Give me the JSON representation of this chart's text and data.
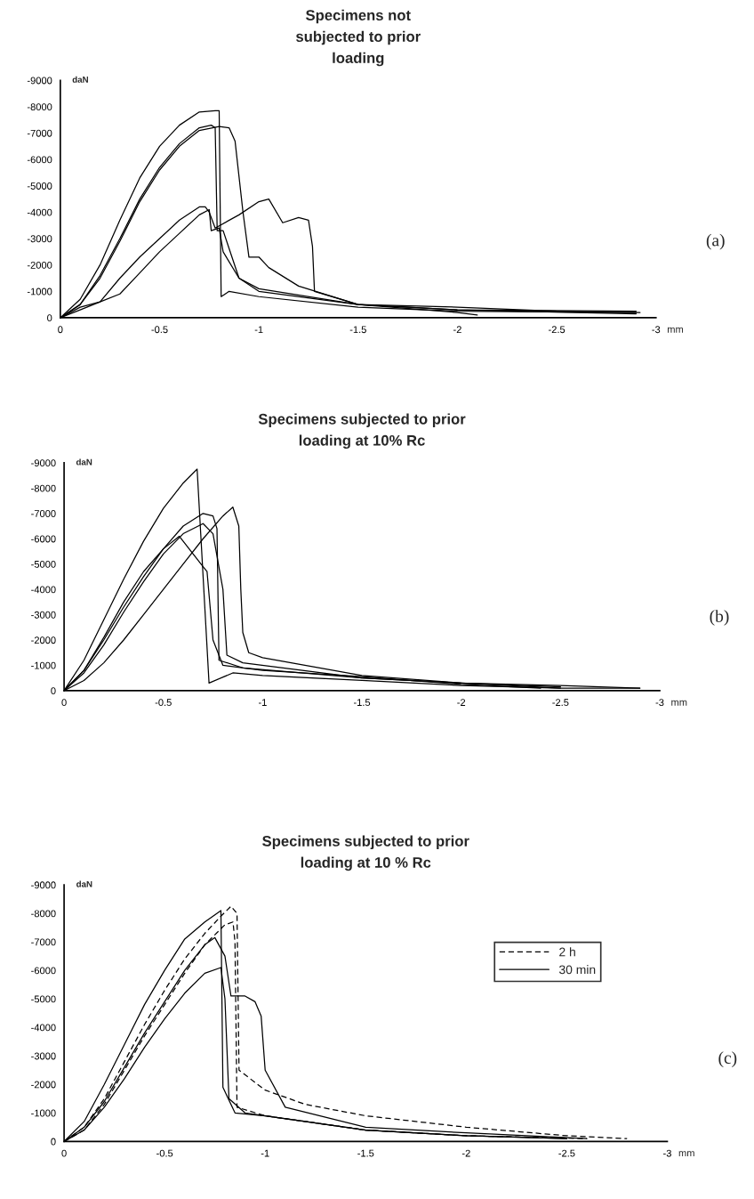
{
  "chart_data": [
    {
      "type": "line",
      "title": "Specimens not\nsubjected to prior\nloading",
      "xlabel": "mm",
      "ylabel": "daN",
      "annotations": [
        "(a)"
      ],
      "xlim": [
        0,
        -3
      ],
      "ylim": [
        0,
        -9000
      ],
      "xticks": [
        0,
        -0.5,
        -1,
        -1.5,
        -2,
        -2.5,
        -3
      ],
      "yticks": [
        0,
        -1000,
        -2000,
        -3000,
        -4000,
        -5000,
        -6000,
        -7000,
        -8000,
        -9000
      ],
      "grid": false,
      "legend": false,
      "marker": "none",
      "series": [
        {
          "color": "#000000",
          "x": [
            0,
            -0.1,
            -0.2,
            -0.3,
            -0.4,
            -0.5,
            -0.6,
            -0.7,
            -0.78,
            -0.8,
            -0.81,
            -0.85,
            -1,
            -1.5,
            -2,
            -2.9
          ],
          "values": [
            0,
            -700,
            -2000,
            -3700,
            -5300,
            -6500,
            -7300,
            -7800,
            -7850,
            -7850,
            -800,
            -1000,
            -800,
            -400,
            -250,
            -200
          ]
        },
        {
          "color": "#000000",
          "x": [
            0,
            -0.1,
            -0.2,
            -0.3,
            -0.4,
            -0.5,
            -0.6,
            -0.7,
            -0.76,
            -0.78,
            -0.79,
            -0.82,
            -0.9,
            -1.0,
            -1.5,
            -2,
            -2.1
          ],
          "values": [
            0,
            -500,
            -1600,
            -3000,
            -4500,
            -5700,
            -6600,
            -7200,
            -7300,
            -7200,
            -3300,
            -3300,
            -1500,
            -1100,
            -500,
            -200,
            -100
          ]
        },
        {
          "color": "#000000",
          "x": [
            0,
            -0.1,
            -0.2,
            -0.3,
            -0.4,
            -0.5,
            -0.6,
            -0.7,
            -0.8,
            -0.85,
            -0.88,
            -0.92,
            -0.95,
            -1.0,
            -1.05,
            -1.2,
            -1.5,
            -2,
            -2.9
          ],
          "values": [
            0,
            -500,
            -1500,
            -2900,
            -4400,
            -5600,
            -6500,
            -7100,
            -7250,
            -7200,
            -6700,
            -4000,
            -2300,
            -2300,
            -1900,
            -1200,
            -500,
            -300,
            -250
          ]
        },
        {
          "color": "#000000",
          "x": [
            0,
            -0.1,
            -0.2,
            -0.3,
            -0.4,
            -0.5,
            -0.6,
            -0.7,
            -0.73,
            -0.75,
            -0.78,
            -0.9,
            -1.0,
            -1.05,
            -1.12,
            -1.2,
            -1.25,
            -1.27,
            -1.28,
            -1.5,
            -2,
            -2.5,
            -2.92
          ],
          "values": [
            0,
            -300,
            -600,
            -1500,
            -2300,
            -3000,
            -3700,
            -4200,
            -4200,
            -4000,
            -3400,
            -3900,
            -4400,
            -4500,
            -3600,
            -3800,
            -3700,
            -2700,
            -1000,
            -500,
            -400,
            -250,
            -200
          ]
        },
        {
          "color": "#000000",
          "x": [
            0,
            -0.1,
            -0.2,
            -0.3,
            -0.4,
            -0.5,
            -0.6,
            -0.7,
            -0.75,
            -0.76,
            -0.8,
            -0.82,
            -0.9,
            -1.0,
            -1.5,
            -2.0,
            -2.9
          ],
          "values": [
            0,
            -400,
            -600,
            -900,
            -1700,
            -2500,
            -3200,
            -3900,
            -4100,
            -3300,
            -3400,
            -2500,
            -1500,
            -1000,
            -500,
            -300,
            -150
          ]
        }
      ]
    },
    {
      "type": "line",
      "title": "Specimens subjected to prior\nloading at 10% Rc",
      "xlabel": "mm",
      "ylabel": "daN",
      "annotations": [
        "(b)"
      ],
      "xlim": [
        0,
        -3
      ],
      "ylim": [
        0,
        -9000
      ],
      "xticks": [
        0,
        -0.5,
        -1,
        -1.5,
        -2,
        -2.5,
        -3
      ],
      "yticks": [
        0,
        -1000,
        -2000,
        -3000,
        -4000,
        -5000,
        -6000,
        -7000,
        -8000,
        -9000
      ],
      "grid": false,
      "legend": false,
      "marker": "none",
      "series": [
        {
          "color": "#000000",
          "x": [
            0,
            -0.1,
            -0.2,
            -0.3,
            -0.4,
            -0.5,
            -0.6,
            -0.67,
            -0.73,
            -0.85,
            -1,
            -1.5,
            -2,
            -2.5,
            -2.9
          ],
          "values": [
            0,
            -1200,
            -2800,
            -4400,
            -5900,
            -7200,
            -8200,
            -8750,
            -300,
            -700,
            -600,
            -400,
            -200,
            -100,
            -100
          ]
        },
        {
          "color": "#000000",
          "x": [
            0,
            -0.1,
            -0.2,
            -0.3,
            -0.4,
            -0.5,
            -0.6,
            -0.7,
            -0.75,
            -0.77,
            -0.78,
            -0.9,
            -1.5,
            -2,
            -2.5
          ],
          "values": [
            0,
            -800,
            -2000,
            -3300,
            -4500,
            -5600,
            -6500,
            -7000,
            -6900,
            -6400,
            -1200,
            -900,
            -500,
            -300,
            -100
          ]
        },
        {
          "color": "#000000",
          "x": [
            0,
            -0.1,
            -0.2,
            -0.3,
            -0.4,
            -0.5,
            -0.6,
            -0.7,
            -0.8,
            -0.85,
            -0.88,
            -0.89,
            -0.9,
            -0.93,
            -1,
            -1.5,
            -2,
            -2.5,
            -2.9
          ],
          "values": [
            0,
            -400,
            -1100,
            -2000,
            -3000,
            -4000,
            -5000,
            -6000,
            -6900,
            -7250,
            -6500,
            -4000,
            -2300,
            -1500,
            -1300,
            -600,
            -300,
            -200,
            -100
          ]
        },
        {
          "color": "#000000",
          "x": [
            0,
            -0.1,
            -0.2,
            -0.3,
            -0.4,
            -0.5,
            -0.6,
            -0.7,
            -0.75,
            -0.8,
            -0.82,
            -0.9,
            -1.5,
            -2,
            -2.5
          ],
          "values": [
            0,
            -700,
            -1800,
            -3100,
            -4300,
            -5400,
            -6200,
            -6600,
            -6200,
            -4000,
            -1400,
            -1100,
            -500,
            -300,
            -150
          ]
        },
        {
          "color": "#000000",
          "x": [
            0,
            -0.1,
            -0.2,
            -0.3,
            -0.4,
            -0.5,
            -0.58,
            -0.65,
            -0.7,
            -0.72,
            -0.75,
            -0.8,
            -1,
            -1.5,
            -2,
            -2.4
          ],
          "values": [
            0,
            -800,
            -2100,
            -3500,
            -4700,
            -5600,
            -6100,
            -5400,
            -4900,
            -4700,
            -2000,
            -1000,
            -800,
            -550,
            -250,
            -100
          ]
        }
      ]
    },
    {
      "type": "line",
      "title": "Specimens subjected to prior\nloading at 10 % Rc",
      "xlabel": "mm",
      "ylabel": "daN",
      "annotations": [
        "(c)"
      ],
      "xlim": [
        0,
        -3
      ],
      "ylim": [
        0,
        -9000
      ],
      "xticks": [
        0,
        -0.5,
        -1,
        -1.5,
        -2,
        -2.5,
        -3
      ],
      "yticks": [
        0,
        -1000,
        -2000,
        -3000,
        -4000,
        -5000,
        -6000,
        -7000,
        -8000,
        -9000
      ],
      "grid": false,
      "legend": "right",
      "marker": "none",
      "series": [
        {
          "name": "2 h",
          "color": "#000000",
          "line_style": "dashed",
          "x": [
            0,
            -0.1,
            -0.2,
            -0.3,
            -0.4,
            -0.5,
            -0.6,
            -0.7,
            -0.78,
            -0.83,
            -0.86,
            -0.87,
            -1.0,
            -1.2,
            -1.5,
            -2,
            -2.5,
            -2.8
          ],
          "values": [
            0,
            -500,
            -1500,
            -2800,
            -4100,
            -5300,
            -6400,
            -7300,
            -7900,
            -8250,
            -8000,
            -2500,
            -1800,
            -1300,
            -900,
            -500,
            -200,
            -100
          ]
        },
        {
          "color": "#000000",
          "line_style": "dashed",
          "x": [
            0,
            -0.1,
            -0.2,
            -0.3,
            -0.4,
            -0.5,
            -0.6,
            -0.7,
            -0.8,
            -0.84,
            -0.85,
            -0.86,
            -1,
            -1.5,
            -2,
            -2.6
          ],
          "values": [
            0,
            -400,
            -1300,
            -2500,
            -3700,
            -4800,
            -5900,
            -6900,
            -7600,
            -7700,
            -7000,
            -1200,
            -900,
            -400,
            -200,
            -100
          ]
        },
        {
          "name": "30 min",
          "color": "#000000",
          "line_style": "solid",
          "x": [
            0,
            -0.1,
            -0.2,
            -0.3,
            -0.4,
            -0.5,
            -0.6,
            -0.7,
            -0.78,
            -0.79,
            -0.85,
            -1,
            -1.5,
            -2,
            -2.5
          ],
          "values": [
            0,
            -700,
            -2000,
            -3400,
            -4800,
            -6000,
            -7100,
            -7700,
            -8100,
            -1900,
            -1000,
            -900,
            -400,
            -200,
            -100
          ]
        },
        {
          "color": "#000000",
          "line_style": "solid",
          "x": [
            0,
            -0.1,
            -0.2,
            -0.3,
            -0.4,
            -0.5,
            -0.6,
            -0.7,
            -0.75,
            -0.8,
            -0.83,
            -0.9,
            -0.95,
            -0.98,
            -1.0,
            -1.1,
            -1.5,
            -2,
            -2.6
          ],
          "values": [
            0,
            -500,
            -1400,
            -2600,
            -3800,
            -4900,
            -6000,
            -6900,
            -7150,
            -6500,
            -5100,
            -5100,
            -4900,
            -4400,
            -2500,
            -1200,
            -500,
            -300,
            -100
          ]
        },
        {
          "color": "#000000",
          "line_style": "solid",
          "x": [
            0,
            -0.1,
            -0.2,
            -0.3,
            -0.4,
            -0.5,
            -0.6,
            -0.7,
            -0.78,
            -0.8,
            -0.82,
            -0.9,
            -1.2,
            -1.5,
            -2,
            -2.5
          ],
          "values": [
            0,
            -400,
            -1200,
            -2200,
            -3300,
            -4300,
            -5200,
            -5900,
            -6100,
            -5000,
            -1500,
            -1000,
            -700,
            -400,
            -200,
            -100
          ]
        }
      ]
    }
  ]
}
